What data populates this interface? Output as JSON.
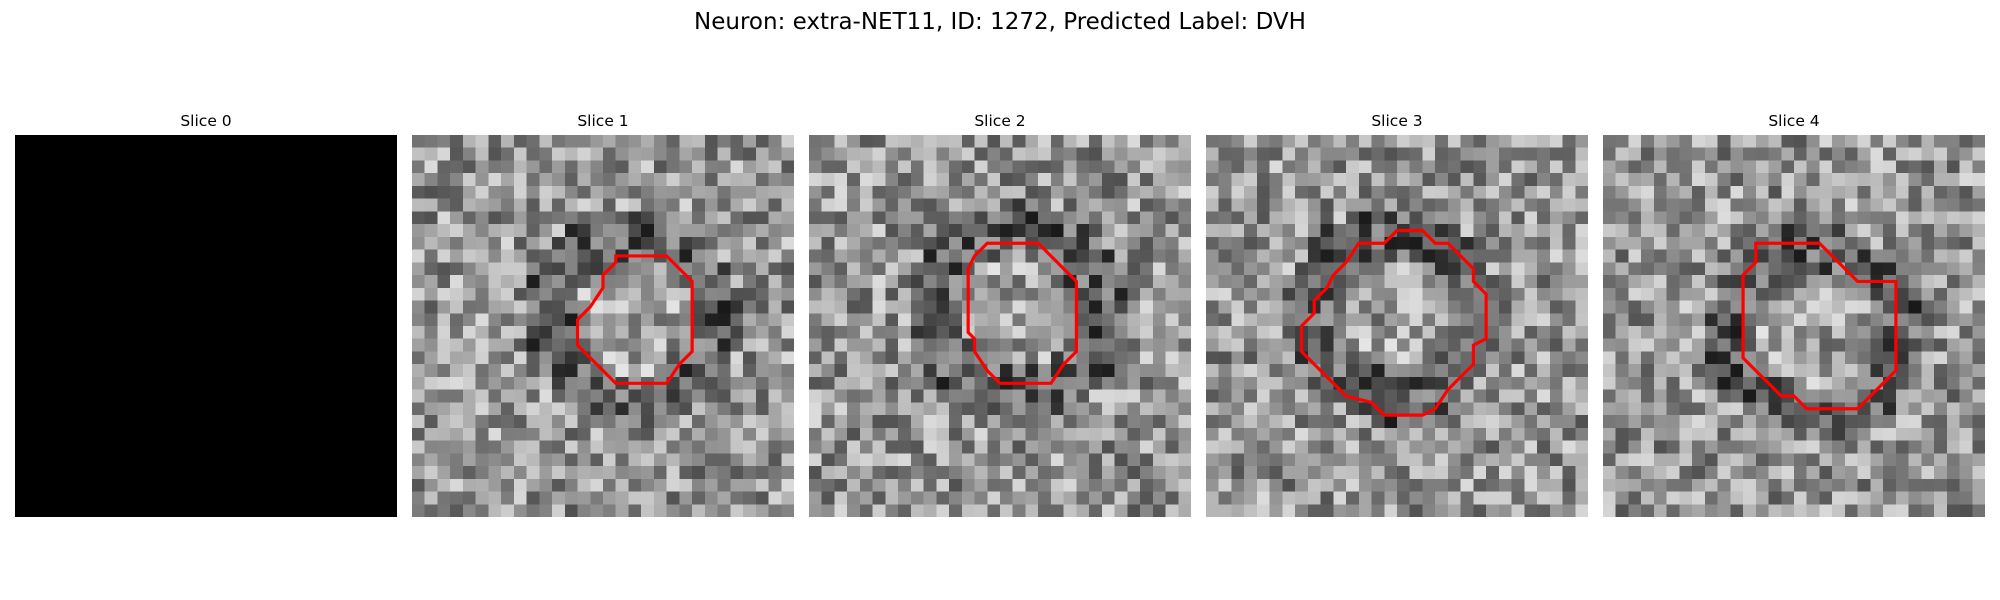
{
  "title": "Neuron: extra-NET11, ID: 1272, Predicted Label: DVH",
  "colors": {
    "contour": "#ff0000",
    "blank_slice": "#000000",
    "background": "#ffffff"
  },
  "panels": [
    {
      "label": "Slice 0",
      "blank": true,
      "seed": 1,
      "contour": []
    },
    {
      "label": "Slice 1",
      "blank": false,
      "seed": 11,
      "contour": [
        [
          16,
          9.5
        ],
        [
          20,
          9.5
        ],
        [
          21,
          10.5
        ],
        [
          22,
          11.5
        ],
        [
          22,
          13.5
        ],
        [
          22,
          17
        ],
        [
          21,
          18
        ],
        [
          20,
          19.5
        ],
        [
          16,
          19.5
        ],
        [
          15,
          18.5
        ],
        [
          14,
          17.5
        ],
        [
          13,
          16.5
        ],
        [
          13,
          14.5
        ],
        [
          14,
          13.5
        ],
        [
          15,
          12
        ],
        [
          15,
          11
        ],
        [
          16,
          10
        ]
      ]
    },
    {
      "label": "Slice 2",
      "blank": false,
      "seed": 22,
      "contour": [
        [
          14,
          8.5
        ],
        [
          18,
          8.5
        ],
        [
          19,
          9.5
        ],
        [
          20,
          10.5
        ],
        [
          21,
          11.5
        ],
        [
          21,
          17
        ],
        [
          20,
          18
        ],
        [
          19,
          19.5
        ],
        [
          15,
          19.5
        ],
        [
          14,
          18.5
        ],
        [
          13,
          17
        ],
        [
          13,
          16
        ],
        [
          12.5,
          15.5
        ],
        [
          12.5,
          10.5
        ],
        [
          13,
          9.5
        ]
      ]
    },
    {
      "label": "Slice 3",
      "blank": false,
      "seed": 33,
      "contour": [
        [
          13,
          8.5
        ],
        [
          14,
          8.5
        ],
        [
          15,
          7.5
        ],
        [
          17,
          7.5
        ],
        [
          18,
          8.5
        ],
        [
          19,
          8.5
        ],
        [
          20,
          9.5
        ],
        [
          21,
          10.5
        ],
        [
          21,
          11.5
        ],
        [
          22,
          12.5
        ],
        [
          22,
          16
        ],
        [
          21,
          16.5
        ],
        [
          21,
          18
        ],
        [
          19,
          20
        ],
        [
          18,
          21.5
        ],
        [
          17,
          22
        ],
        [
          14,
          22
        ],
        [
          13,
          21
        ],
        [
          11,
          20.5
        ],
        [
          10,
          19.5
        ],
        [
          8.5,
          18
        ],
        [
          7.5,
          17
        ],
        [
          7.5,
          15
        ],
        [
          8.5,
          14
        ],
        [
          8.5,
          13
        ],
        [
          9.5,
          12
        ],
        [
          10,
          11
        ],
        [
          11,
          10
        ],
        [
          12,
          8.5
        ]
      ]
    },
    {
      "label": "Slice 4",
      "blank": false,
      "seed": 44,
      "contour": [
        [
          12,
          8.5
        ],
        [
          17,
          8.5
        ],
        [
          18,
          9.5
        ],
        [
          19,
          10.5
        ],
        [
          20,
          11.5
        ],
        [
          23,
          11.5
        ],
        [
          23,
          18.5
        ],
        [
          22,
          19.5
        ],
        [
          21,
          20.5
        ],
        [
          20,
          21.5
        ],
        [
          16,
          21.5
        ],
        [
          15,
          20.5
        ],
        [
          14,
          20.5
        ],
        [
          13,
          19.5
        ],
        [
          12,
          18.5
        ],
        [
          11,
          17.5
        ],
        [
          11,
          11
        ],
        [
          12,
          10
        ]
      ]
    }
  ]
}
